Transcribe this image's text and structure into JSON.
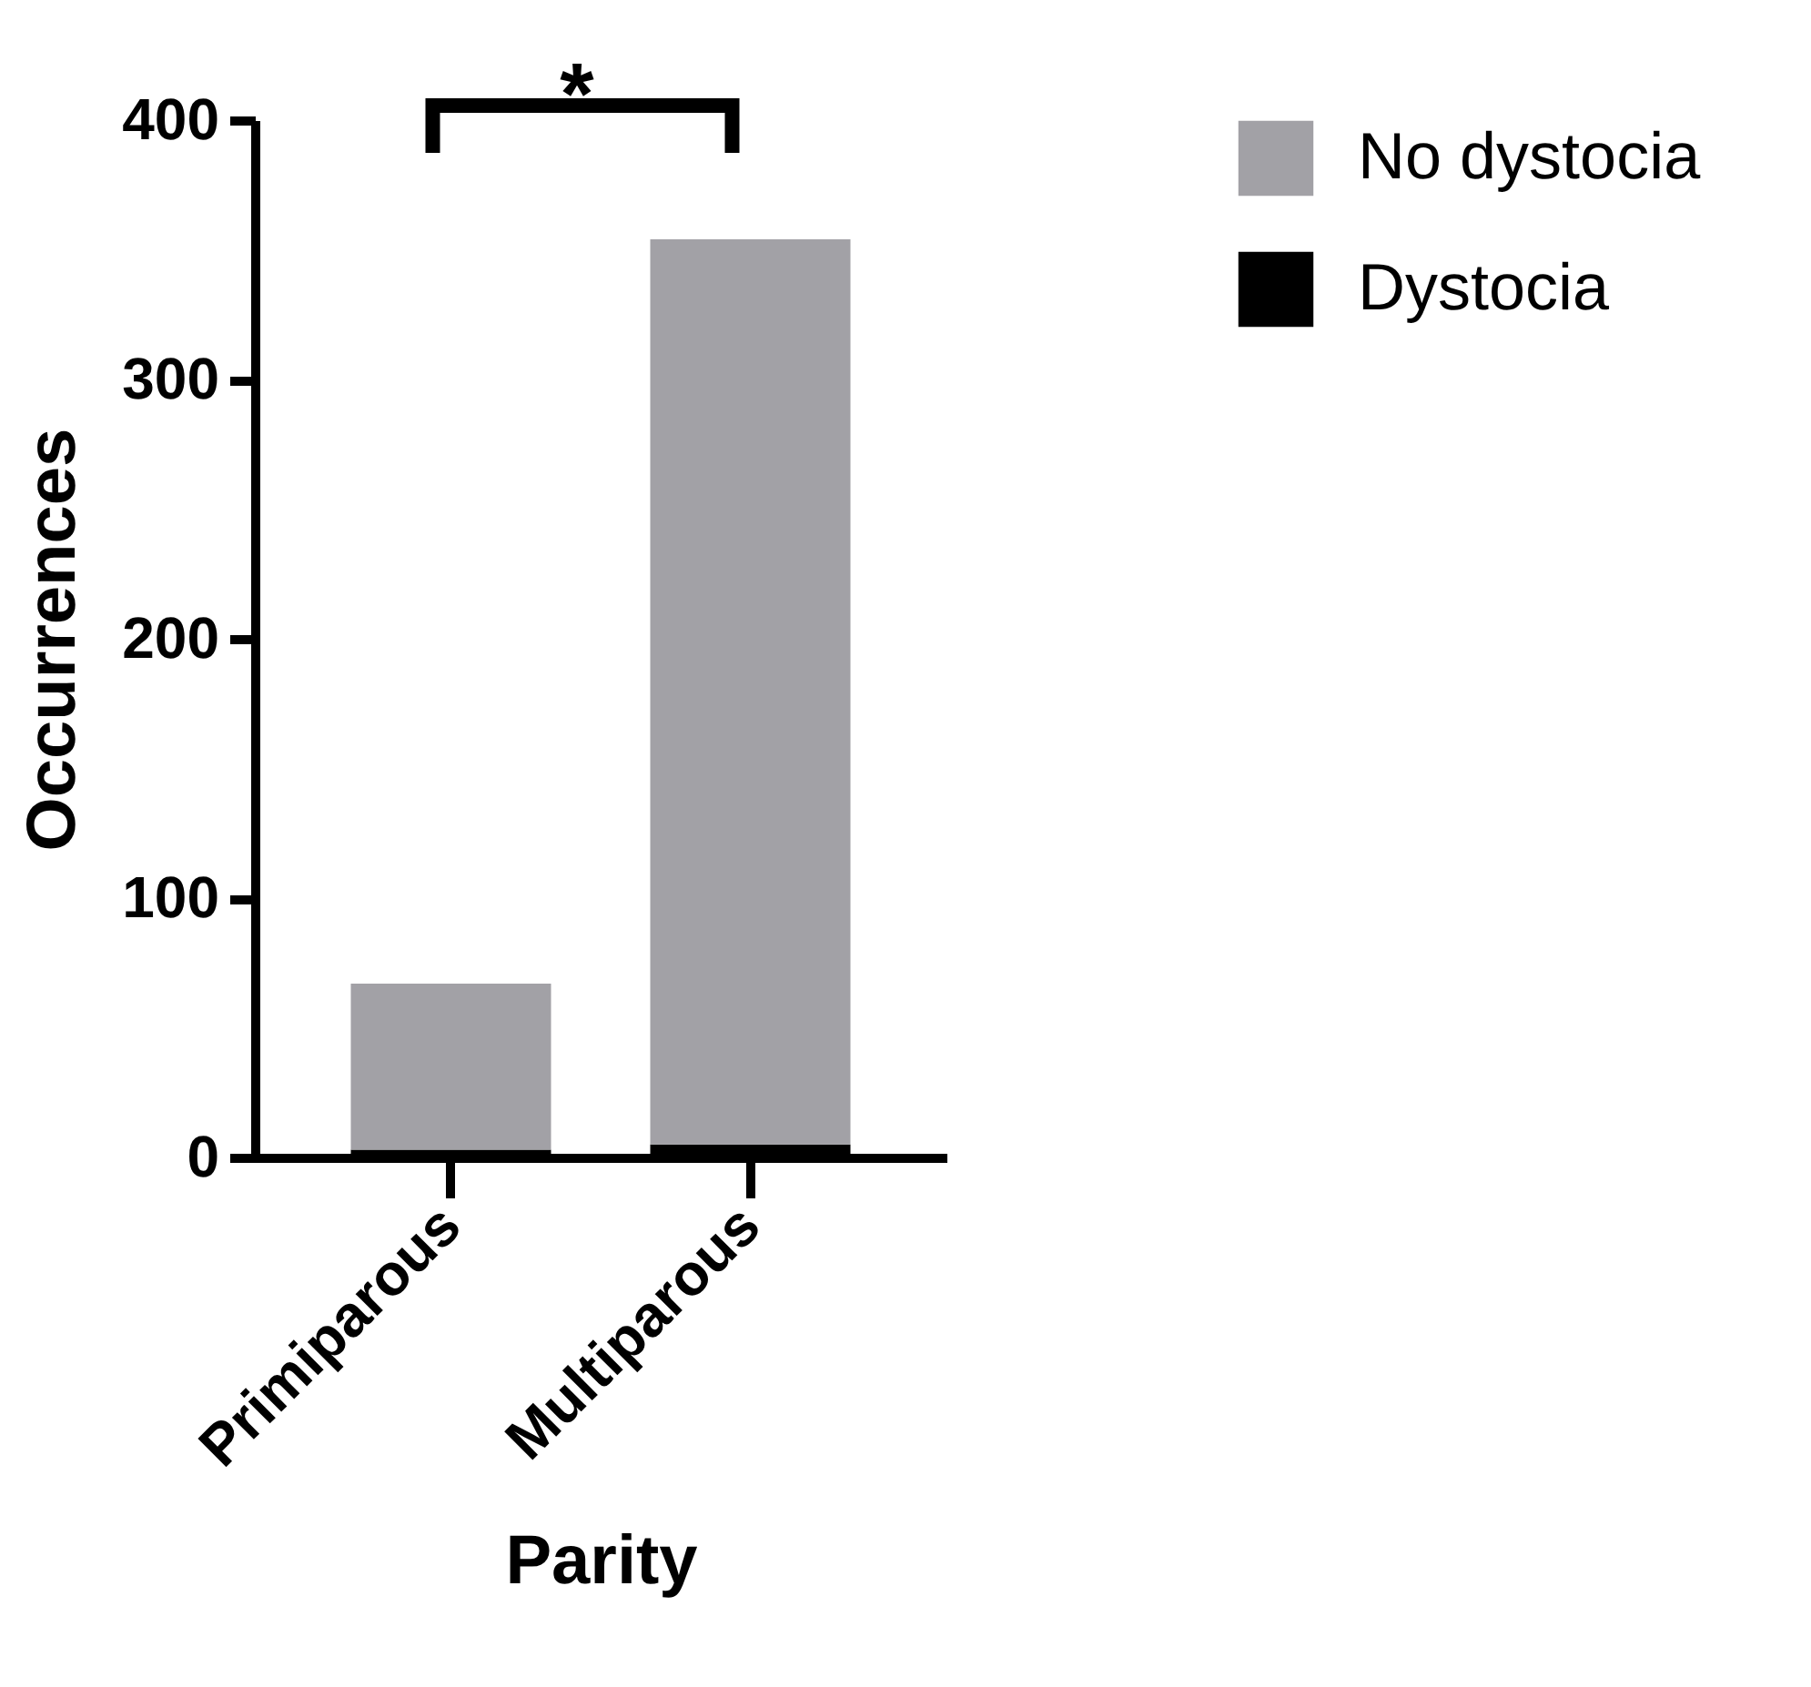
{
  "chart_data": {
    "type": "bar",
    "xlabel": "Parity",
    "ylabel": "Occurrences",
    "categories": [
      "Primiparous",
      "Multiparous"
    ],
    "series": [
      {
        "name": "Dystocia",
        "color": "#000000",
        "values": [
          3,
          5
        ]
      },
      {
        "name": "No dystocia",
        "color": "#a2a1a6",
        "values": [
          64,
          349
        ]
      }
    ],
    "stacked": true,
    "ylim": [
      0,
      400
    ],
    "yticks": [
      0,
      100,
      200,
      300,
      400
    ],
    "grid": false,
    "legend": "top right",
    "annotations": [
      "*"
    ]
  }
}
